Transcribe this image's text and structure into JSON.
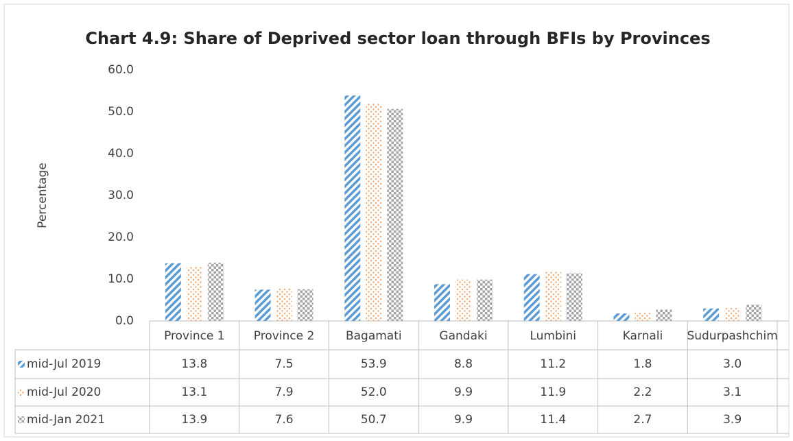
{
  "chart_data": {
    "type": "bar",
    "title": "Chart 4.9: Share of Deprived sector loan through BFIs by Provinces",
    "y_label": "Percentage",
    "categories": [
      "Province 1",
      "Province 2",
      "Bagamati",
      "Gandaki",
      "Lumbini",
      "Karnali",
      "Sudurpashchim"
    ],
    "series": [
      {
        "name": "mid-Jul 2019",
        "color": "#5b9bd5",
        "values": [
          13.8,
          7.5,
          53.9,
          8.8,
          11.2,
          1.8,
          3.0
        ],
        "value_labels": [
          "13.8",
          "7.5",
          "53.9",
          "8.8",
          "11.2",
          "1.8",
          "3.0"
        ]
      },
      {
        "name": "mid-Jul 2020",
        "color": "#f4a46a",
        "values": [
          13.1,
          7.9,
          52.0,
          9.9,
          11.9,
          2.2,
          3.1
        ],
        "value_labels": [
          "13.1",
          "7.9",
          "52.0",
          "9.9",
          "11.9",
          "2.2",
          "3.1"
        ]
      },
      {
        "name": "mid-Jan 2021",
        "color": "#a5a5a5",
        "values": [
          13.9,
          7.6,
          50.7,
          9.9,
          11.4,
          2.7,
          3.9
        ],
        "value_labels": [
          "13.9",
          "7.6",
          "50.7",
          "9.9",
          "11.4",
          "2.7",
          "3.9"
        ]
      }
    ],
    "ylim": [
      0,
      60
    ],
    "yticks": [
      {
        "value": 0,
        "label": "0.0"
      },
      {
        "value": 10,
        "label": "10.0"
      },
      {
        "value": 20,
        "label": "20.0"
      },
      {
        "value": 30,
        "label": "30.0"
      },
      {
        "value": 40,
        "label": "40.0"
      },
      {
        "value": 50,
        "label": "50.0"
      },
      {
        "value": 60,
        "label": "60.0"
      }
    ],
    "grid": false
  }
}
